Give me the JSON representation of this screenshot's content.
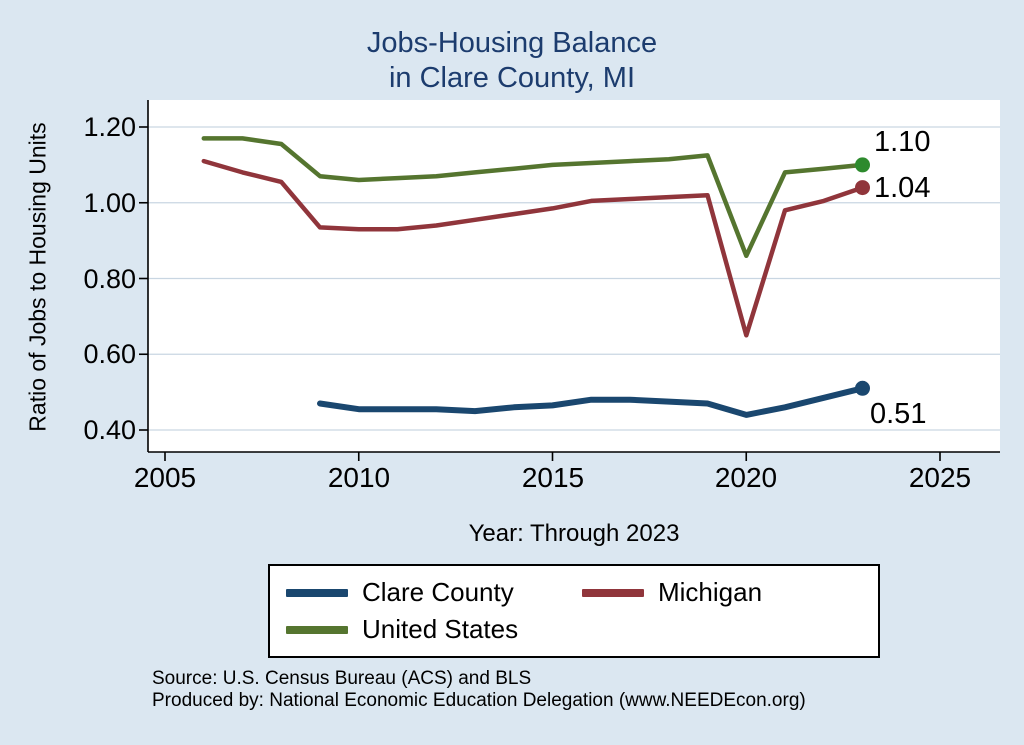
{
  "title": {
    "line1": "Jobs-Housing Balance",
    "line2": "in Clare County, MI"
  },
  "axes": {
    "y_label": "Ratio of Jobs to Housing Units",
    "x_label": "Year: Through 2023",
    "y_tick_labels": [
      "1.20",
      "1.00",
      "0.80",
      "0.60",
      "0.40"
    ],
    "x_tick_labels": [
      "2005",
      "2010",
      "2015",
      "2020",
      "2025"
    ]
  },
  "notes": {
    "source": "Source: U.S. Census Bureau (ACS) and BLS",
    "produced": "Produced by: National Economic Education Delegation (www.NEEDEcon.org)"
  },
  "colors": {
    "background": "#dbe7f1",
    "plot_background": "#ffffff",
    "gridline": "#c9d6e2",
    "title_text": "#1c3c6e",
    "clare_county": "#1a476f",
    "michigan": "#90353b",
    "united_states": "#55752f",
    "us_end_marker": "#2d8a2d"
  },
  "chart_data": {
    "type": "line",
    "title": "Jobs-Housing Balance in Clare County, MI",
    "xlabel": "Year: Through 2023",
    "ylabel": "Ratio of Jobs to Housing Units",
    "xlim": [
      2005,
      2025
    ],
    "ylim": [
      0.4,
      1.2
    ],
    "grid": "horizontal",
    "legend_position": "bottom",
    "ytick_values": [
      1.2,
      1.0,
      0.8,
      0.6,
      0.4
    ],
    "xtick_values": [
      2005,
      2010,
      2015,
      2020,
      2025
    ],
    "series": [
      {
        "name": "Clare County",
        "color": "#1a476f",
        "line_width": 6,
        "end_label": "0.51",
        "x": [
          2009,
          2010,
          2011,
          2012,
          2013,
          2014,
          2015,
          2016,
          2017,
          2018,
          2019,
          2020,
          2021,
          2022,
          2023
        ],
        "values": [
          0.47,
          0.455,
          0.455,
          0.455,
          0.45,
          0.46,
          0.465,
          0.48,
          0.48,
          0.475,
          0.47,
          0.44,
          0.46,
          0.485,
          0.51
        ]
      },
      {
        "name": "Michigan",
        "color": "#90353b",
        "line_width": 4.5,
        "end_label": "1.04",
        "x": [
          2006,
          2007,
          2008,
          2009,
          2010,
          2011,
          2012,
          2013,
          2014,
          2015,
          2016,
          2017,
          2018,
          2019,
          2020,
          2021,
          2022,
          2023
        ],
        "values": [
          1.11,
          1.08,
          1.055,
          0.935,
          0.93,
          0.93,
          0.94,
          0.955,
          0.97,
          0.985,
          1.005,
          1.01,
          1.015,
          1.02,
          0.65,
          0.98,
          1.005,
          1.04
        ]
      },
      {
        "name": "United States",
        "color": "#55752f",
        "line_width": 4.5,
        "marker_color": "#2d8a2d",
        "end_label": "1.10",
        "x": [
          2006,
          2007,
          2008,
          2009,
          2010,
          2011,
          2012,
          2013,
          2014,
          2015,
          2016,
          2017,
          2018,
          2019,
          2020,
          2021,
          2022,
          2023
        ],
        "values": [
          1.17,
          1.17,
          1.155,
          1.07,
          1.06,
          1.065,
          1.07,
          1.08,
          1.09,
          1.1,
          1.105,
          1.11,
          1.115,
          1.125,
          0.86,
          1.08,
          1.09,
          1.1
        ]
      }
    ]
  }
}
